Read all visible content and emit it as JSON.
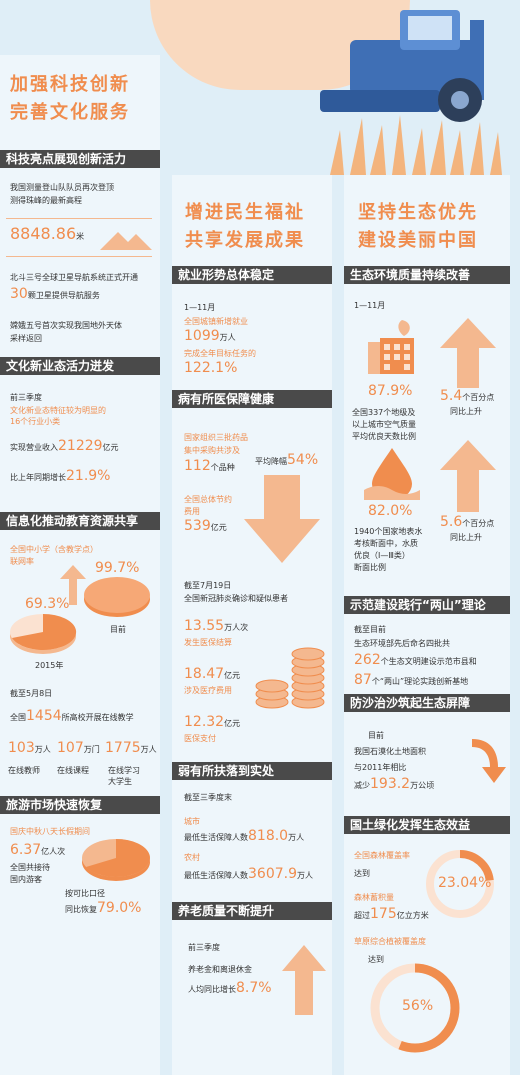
{
  "colors": {
    "accent": "#f08d4e",
    "bar": "#4a4a4a",
    "panel": "#eef6fb",
    "bg": "#dfeef7"
  },
  "left": {
    "title1": "加强科技创新",
    "title2": "完善文化服务",
    "s1": {
      "bar": "科技亮点展现创新活力",
      "l1": "我国测量登山队队员再次登顶",
      "l2": "测得珠峰的最新高程",
      "num": "8848.86",
      "unit": "米",
      "bd1": "北斗三号全球卫星导航系统正式开通",
      "bd_num": "30",
      "bd_rest": "颗卫星提供导航服务",
      "ce1": "嫦娥五号首次实现我国地外天体",
      "ce2": "采样返回"
    },
    "s2": {
      "bar": "文化新业态活力迸发",
      "a": "前三季度",
      "b": "文化新业态特征较为明显的",
      "c": "16个行业小类",
      "d": "实现营业收入",
      "d_num": "21229",
      "d_unit": "亿元",
      "e": "比上年同期增长",
      "e_num": "21.9%"
    },
    "s3": {
      "bar": "信息化推动教育资源共享",
      "a": "全国中小学（含教学点）",
      "b": "联网率",
      "v1": "69.3%",
      "y1": "2015年",
      "v2": "99.7%",
      "y2": "目前",
      "c": "截至5月8日",
      "d1": "全国",
      "d_num": "1454",
      "d2": "所高校开展在线教学",
      "m1_num": "103",
      "m1_unit": "万人",
      "m1_lbl": "在线教师",
      "m2_num": "107",
      "m2_unit": "万门",
      "m2_lbl": "在线课程",
      "m3_num": "1775",
      "m3_unit": "万人",
      "m3_l1": "在线学习",
      "m3_l2": "大学生"
    },
    "s4": {
      "bar": "旅游市场快速恢复",
      "a": "国庆中秋八天长假期间",
      "num": "6.37",
      "unit": "亿人次",
      "b": "全国共接待",
      "c": "国内游客",
      "d": "按可比口径",
      "e": "同比恢复",
      "e_num": "79.0%"
    }
  },
  "mid": {
    "title1": "增进民生福祉",
    "title2": "共享发展成果",
    "s1": {
      "bar": "就业形势总体稳定",
      "a": "1—11月",
      "b": "全国城镇新增就业",
      "num1": "1099",
      "unit1": "万人",
      "c": "完成全年目标任务的",
      "num2": "122.1%"
    },
    "s2": {
      "bar": "病有所医保障健康",
      "a": "国家组织三批药品",
      "b": "集中采购共涉及",
      "num1": "112",
      "unit1": "个品种",
      "c": "平均降幅",
      "num2": "54%",
      "d": "全国总体节约",
      "e": "费用",
      "num3": "539",
      "unit3": "亿元",
      "f": "截至7月19日",
      "g": "全国新冠肺炎确诊和疑似患者",
      "n4": "13.55",
      "u4": "万人次",
      "l4": "发生医保结算",
      "n5": "18.47",
      "u5": "亿元",
      "l5": "涉及医疗费用",
      "n6": "12.32",
      "u6": "亿元",
      "l6": "医保支付"
    },
    "s3": {
      "bar": "弱有所扶落到实处",
      "a": "截至三季度末",
      "b": "城市",
      "c": "最低生活保障人数",
      "num1": "818.0",
      "u1": "万人",
      "d": "农村",
      "e": "最低生活保障人数",
      "num2": "3607.9",
      "u2": "万人"
    },
    "s4": {
      "bar": "养老质量不断提升",
      "a": "前三季度",
      "b": "养老金和离退休金",
      "c": "人均同比增长",
      "num": "8.7%"
    }
  },
  "right": {
    "title1": "坚持生态优先",
    "title2": "建设美丽中国",
    "s1": {
      "bar": "生态环境质量持续改善",
      "a": "1—11月",
      "n1": "87.9%",
      "b1": "全国337个地级及",
      "b2": "以上城市空气质量",
      "b3": "平均优良天数比例",
      "up1": "5.4",
      "up1u": "个百分点",
      "up1l": "同比上升",
      "n2": "82.0%",
      "c1": "1940个国家地表水",
      "c2": "考核断面中，水质",
      "c3": "优良（Ⅰ—Ⅲ类）",
      "c4": "断面比例",
      "up2": "5.6",
      "up2u": "个百分点",
      "up2l": "同比上升"
    },
    "s2": {
      "bar": "示范建设践行“两山”理论",
      "a": "截至目前",
      "b": "生态环境部先后命名四批共",
      "n1": "262",
      "c": "个生态文明建设示范市县和",
      "n2": "87",
      "d": "个“两山”理论实践创新基地"
    },
    "s3": {
      "bar": "防沙治沙筑起生态屏障",
      "a": "目前",
      "b": "我国石漠化土地面积",
      "c": "与2011年相比",
      "d": "减少",
      "num": "193.2",
      "unit": "万公顷"
    },
    "s4": {
      "bar": "国土绿化发挥生态效益",
      "a": "全国森林覆盖率",
      "b": "达到",
      "v1": "23.04%",
      "c": "森林蓄积量",
      "d": "超过",
      "n2": "175",
      "u2": "亿立方米",
      "e": "草原综合植被覆盖度",
      "f": "达到",
      "v3": "56%"
    }
  }
}
